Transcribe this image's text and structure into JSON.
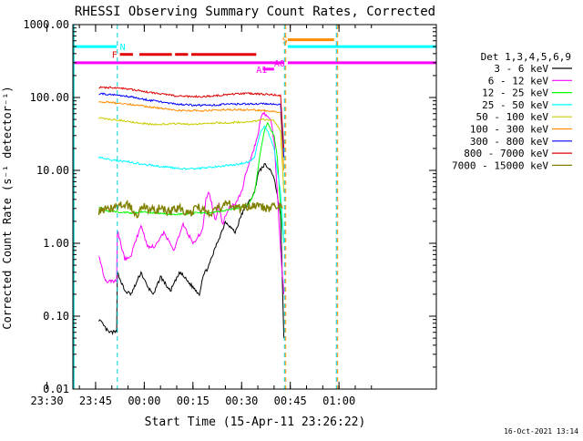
{
  "chart_data": {
    "type": "line",
    "title": "RHESSI Observing Summary Count Rates, Corrected",
    "xlabel": "Start Time (15-Apr-11 23:26:22)",
    "ylabel": "Corrected Count Rate (s⁻¹ detector⁻¹)",
    "y_scale": "log",
    "ylim": [
      0.01,
      1000
    ],
    "y_ticks": [
      "1000.00",
      "100.00",
      "10.00",
      "1.00",
      "0.10",
      "0.01"
    ],
    "x_ticks": [
      "23:30",
      "23:45",
      "00:00",
      "00:15",
      "00:30",
      "00:45",
      "01:00"
    ],
    "xlim_minutes": [
      -22,
      90
    ],
    "grid": false,
    "legend_position": "right",
    "legend_title": "Det 1,3,4,5,6,9",
    "footer_date": "16-Oct-2021 13:14",
    "series": [
      {
        "name": "3 - 6 keV",
        "color": "#000000",
        "x": [
          -14,
          -11,
          -8.5,
          -8.3,
          -6,
          -4,
          -1,
          1,
          3,
          5,
          8,
          11,
          14,
          17,
          18,
          20,
          22,
          24,
          25,
          26,
          28,
          30,
          32,
          34,
          35,
          37,
          38,
          39,
          40,
          41,
          42,
          43
        ],
        "y": [
          0.09,
          0.06,
          0.06,
          0.4,
          0.22,
          0.2,
          0.4,
          0.25,
          0.2,
          0.35,
          0.22,
          0.4,
          0.28,
          0.2,
          0.35,
          0.5,
          0.9,
          1.5,
          2.0,
          1.8,
          1.4,
          2.5,
          3.5,
          5.0,
          9.0,
          12,
          11,
          10,
          8,
          4.5,
          2.5,
          0.05
        ]
      },
      {
        "name": "6 - 12 keV",
        "color": "#ff00ff",
        "x": [
          -14,
          -12,
          -8.5,
          -8.3,
          -6,
          -4,
          -1,
          1,
          3,
          6,
          9,
          12,
          15,
          18,
          19,
          20,
          22,
          23,
          24,
          26,
          28,
          30,
          31,
          33,
          35,
          36,
          37,
          38,
          39,
          40,
          41,
          42,
          43
        ],
        "y": [
          0.7,
          0.3,
          0.3,
          1.5,
          0.6,
          0.7,
          1.8,
          0.9,
          0.9,
          1.4,
          0.8,
          1.8,
          1.0,
          1.5,
          4.0,
          5.0,
          2.0,
          3.5,
          1.8,
          3.0,
          3.5,
          5.0,
          8.0,
          15,
          30,
          55,
          60,
          55,
          50,
          25,
          5.0,
          0.8,
          0.2
        ]
      },
      {
        "name": "12 - 25 keV",
        "color": "#00ff00",
        "x": [
          -14,
          -12,
          -8,
          -4,
          0,
          4,
          8,
          12,
          16,
          20,
          24,
          28,
          32,
          34,
          35,
          36,
          37,
          38,
          40,
          41,
          42,
          43
        ],
        "y": [
          3.2,
          2.8,
          2.7,
          2.6,
          2.7,
          2.6,
          2.5,
          2.5,
          2.6,
          2.6,
          2.8,
          3.0,
          3.3,
          5.0,
          10,
          20,
          35,
          45,
          30,
          15,
          3.0,
          1.0
        ]
      },
      {
        "name": "25 - 50 keV",
        "color": "#00ffff",
        "x": [
          -14,
          -12,
          -8,
          -4,
          0,
          4,
          8,
          12,
          16,
          20,
          24,
          28,
          32,
          34,
          35,
          36,
          37,
          38,
          40,
          42,
          43
        ],
        "y": [
          15,
          14.5,
          13.5,
          13,
          12,
          11.5,
          11,
          10.5,
          10.5,
          11,
          11.5,
          12,
          13,
          15,
          25,
          35,
          40,
          35,
          20,
          5.0,
          1.0
        ]
      },
      {
        "name": "50 - 100 keV",
        "color": "#cccc00",
        "x": [
          -14,
          -10,
          -6,
          -2,
          2,
          6,
          10,
          14,
          18,
          22,
          26,
          30,
          34,
          36,
          38,
          40,
          42,
          43
        ],
        "y": [
          52,
          50,
          48,
          45,
          43,
          43,
          44,
          43,
          44,
          45,
          45,
          46,
          47,
          50,
          50,
          48,
          35,
          5.0
        ]
      },
      {
        "name": "100 - 300 keV",
        "color": "#ff8c00",
        "x": [
          -14,
          -10,
          -6,
          -2,
          2,
          6,
          10,
          14,
          18,
          22,
          26,
          30,
          34,
          38,
          42,
          43
        ],
        "y": [
          88,
          85,
          82,
          78,
          74,
          70,
          67,
          66,
          66,
          67,
          68,
          68,
          67,
          66,
          62,
          10
        ]
      },
      {
        "name": "300 - 800 keV",
        "color": "#0000ff",
        "x": [
          -14,
          -10,
          -6,
          -2,
          2,
          6,
          10,
          14,
          18,
          22,
          26,
          30,
          34,
          38,
          42,
          43
        ],
        "y": [
          112,
          110,
          105,
          98,
          91,
          86,
          81,
          79,
          78,
          79,
          81,
          81,
          82,
          82,
          80,
          15
        ]
      },
      {
        "name": "800 - 7000 keV",
        "color": "#e00000",
        "x": [
          -14,
          -10,
          -6,
          -2,
          2,
          6,
          10,
          14,
          18,
          22,
          26,
          30,
          34,
          38,
          42,
          43
        ],
        "y": [
          138,
          136,
          132,
          125,
          117,
          110,
          105,
          103,
          103,
          106,
          110,
          113,
          113,
          110,
          107,
          20
        ]
      },
      {
        "name": "7000 - 15000 keV",
        "color": "#808000",
        "x": [
          -14,
          -10,
          -8,
          -6,
          -4,
          -2,
          0,
          2,
          5,
          8,
          11,
          14,
          17,
          20,
          23,
          26,
          29,
          32,
          35,
          38,
          41,
          42.5
        ],
        "y": [
          2.8,
          3.0,
          3.2,
          3.5,
          3.0,
          2.5,
          3.2,
          2.8,
          3.0,
          2.7,
          3.0,
          2.6,
          3.2,
          2.5,
          3.0,
          3.5,
          3.0,
          3.2,
          3.4,
          3.0,
          3.4,
          3.0
        ]
      }
    ],
    "flags": [
      {
        "label": "N",
        "color": "#00ffff",
        "level": 500
      },
      {
        "label": "F",
        "color": "#e00000",
        "level": 390
      },
      {
        "label": "S",
        "color": "#ff8c00",
        "level": 620
      },
      {
        "label": "A1",
        "color": "#ff00ff",
        "level": 245
      },
      {
        "label": "A0",
        "color": "#ff00ff",
        "level": 300
      }
    ]
  }
}
